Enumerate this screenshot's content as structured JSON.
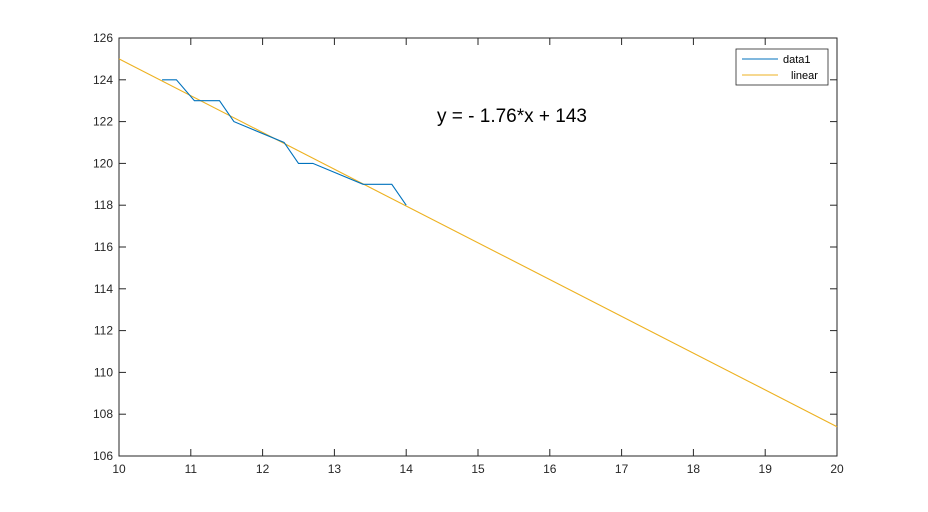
{
  "chart_data": {
    "type": "line",
    "xlim": [
      10,
      20
    ],
    "ylim": [
      106,
      126
    ],
    "xticks": [
      10,
      11,
      12,
      13,
      14,
      15,
      16,
      17,
      18,
      19,
      20
    ],
    "yticks": [
      106,
      108,
      110,
      112,
      114,
      116,
      118,
      120,
      122,
      124,
      126
    ],
    "grid": false,
    "legend_position": "top-right",
    "annotation": "y = - 1.76*x + 143",
    "series": [
      {
        "name": "data1",
        "color": "#0072BD",
        "x": [
          10.6,
          10.8,
          11.05,
          11.4,
          11.6,
          12.3,
          12.5,
          12.7,
          13.4,
          13.8,
          14.0
        ],
        "y": [
          124,
          124,
          123,
          123,
          122,
          121,
          120,
          120,
          119,
          119,
          118
        ]
      },
      {
        "name": "linear",
        "color": "#EDB120",
        "x": [
          10,
          20
        ],
        "y": [
          125.0,
          107.4
        ]
      }
    ]
  }
}
